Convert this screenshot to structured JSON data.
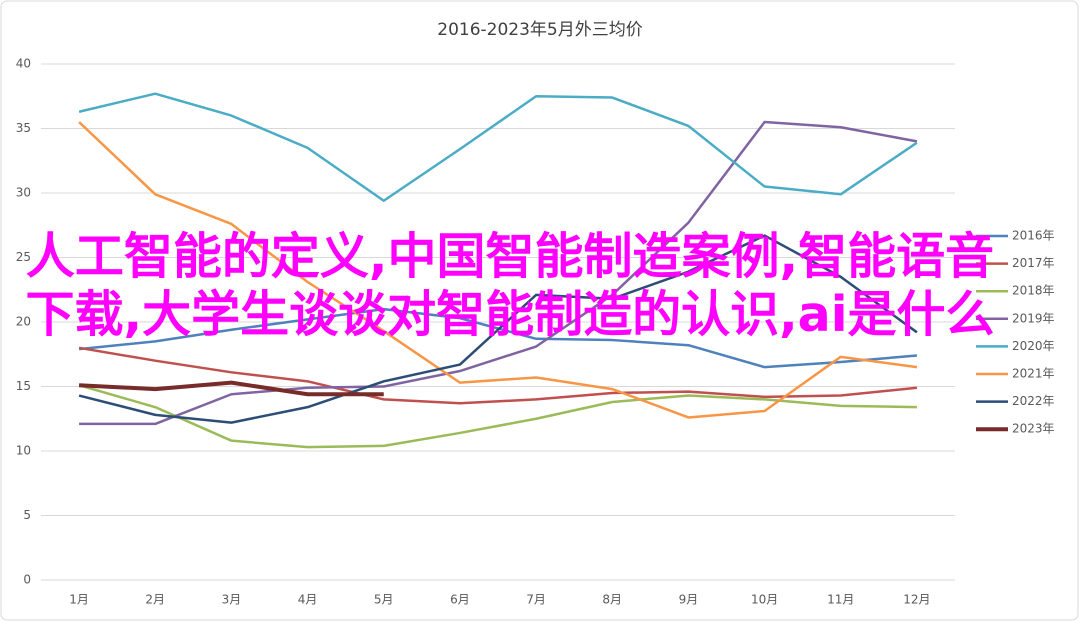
{
  "chart_data": {
    "type": "line",
    "title": "2016-2023年5月外三均价",
    "categories": [
      "1月",
      "2月",
      "3月",
      "4月",
      "5月",
      "6月",
      "7月",
      "8月",
      "9月",
      "10月",
      "11月",
      "12月"
    ],
    "ylim": [
      0,
      40
    ],
    "yticks": [
      0,
      5,
      10,
      15,
      20,
      25,
      30,
      35,
      40
    ],
    "grid": true,
    "legend": "right",
    "series": [
      {
        "name": "2016年",
        "color": "#4f81bd",
        "values": [
          17.9,
          18.5,
          19.4,
          20.2,
          21.0,
          20.3,
          18.7,
          18.6,
          18.2,
          16.5,
          16.9,
          17.4
        ]
      },
      {
        "name": "2017年",
        "color": "#c0504d",
        "values": [
          18.0,
          17.0,
          16.1,
          15.4,
          14.0,
          13.7,
          14.0,
          14.5,
          14.6,
          14.2,
          14.3,
          14.9
        ]
      },
      {
        "name": "2018年",
        "color": "#9bbb59",
        "values": [
          15.1,
          13.4,
          10.8,
          10.3,
          10.4,
          11.4,
          12.5,
          13.8,
          14.3,
          14.0,
          13.5,
          13.4
        ]
      },
      {
        "name": "2019年",
        "color": "#8064a2",
        "values": [
          12.1,
          12.1,
          14.4,
          14.9,
          15.0,
          16.2,
          18.1,
          22.1,
          27.7,
          35.5,
          35.1,
          34.0
        ]
      },
      {
        "name": "2020年",
        "color": "#4bacc6",
        "values": [
          36.3,
          37.7,
          36.0,
          33.5,
          29.4,
          33.4,
          37.5,
          37.4,
          35.2,
          30.5,
          29.9,
          33.9
        ]
      },
      {
        "name": "2021年",
        "color": "#f79646",
        "values": [
          35.5,
          29.9,
          27.6,
          23.1,
          19.3,
          15.3,
          15.7,
          14.8,
          12.6,
          13.1,
          17.3,
          16.5
        ]
      },
      {
        "name": "2022年",
        "color": "#2c4d75",
        "values": [
          14.3,
          12.8,
          12.2,
          13.4,
          15.4,
          16.7,
          22.1,
          21.8,
          23.9,
          26.7,
          23.5,
          19.2
        ]
      },
      {
        "name": "2023年",
        "color": "#772c2a",
        "values": [
          15.1,
          14.8,
          15.3,
          14.4,
          14.4,
          null,
          null,
          null,
          null,
          null,
          null,
          null
        ]
      }
    ]
  },
  "overlay_text": "人工智能的定义,中国智能制造案例,智能语音下载,大学生谈谈对智能制造的认识,ai是什么"
}
